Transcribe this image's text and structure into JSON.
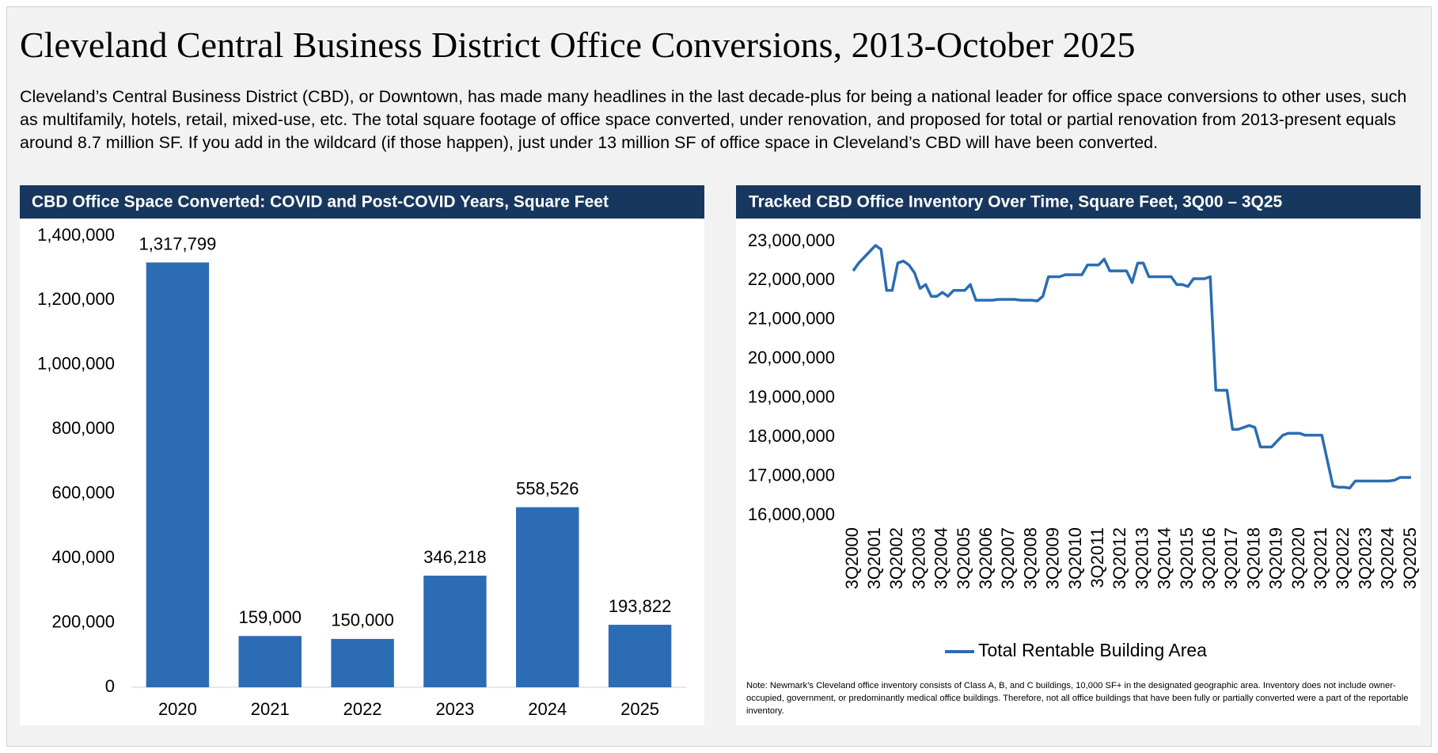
{
  "title": "Cleveland Central Business District Office Conversions, 2013-October 2025",
  "description": "Cleveland’s Central Business District (CBD), or Downtown, has made many headlines in the last decade-plus for being a national leader for office space conversions to other uses, such as multifamily, hotels, retail, mixed-use, etc. The total square footage of office space converted, under renovation, and proposed for total or partial renovation from 2013-present equals around 8.7 million SF. If you add in the wildcard (if those happen), just under 13 million SF of office space in Cleveland’s CBD will have been converted.",
  "note": "Note: Newmark’s Cleveland office inventory consists of Class A, B, and C buildings, 10,000 SF+ in the designated geographic area. Inventory does not include owner-occupied, government, or predominantly medical office buildings. Therefore, not all office buildings that have been fully or partially converted were a part of the reportable inventory.",
  "chart_data": [
    {
      "type": "bar",
      "title": "CBD Office Space Converted: COVID and Post-COVID Years, Square Feet",
      "categories": [
        "2020",
        "2021",
        "2022",
        "2023",
        "2024",
        "2025"
      ],
      "values": [
        1317799,
        159000,
        150000,
        346218,
        558526,
        193822
      ],
      "value_labels": [
        "1,317,799",
        "159,000",
        "150,000",
        "346,218",
        "558,526",
        "193,822"
      ],
      "color": "#2b6cb5",
      "grid": false,
      "ylim": [
        0,
        1400000
      ],
      "yticks": [
        0,
        {
          "value": 200000,
          "label": "200,000"
        },
        {
          "value": 400000,
          "label": "400,000"
        },
        {
          "value": 600000,
          "label": "600,000"
        },
        {
          "value": 800000,
          "label": "800,000"
        },
        {
          "value": 1000000,
          "label": "1,000,000"
        },
        {
          "value": 1200000,
          "label": "1,200,000"
        },
        {
          "value": 1400000,
          "label": "1,400,000"
        }
      ]
    },
    {
      "type": "line",
      "title": "Tracked CBD Office Inventory Over Time, Square Feet, 3Q00 – 3Q25",
      "categories": [
        "3Q2000",
        null,
        null,
        null,
        "3Q2001",
        null,
        null,
        null,
        "3Q2002",
        null,
        null,
        null,
        "3Q2003",
        null,
        null,
        null,
        "3Q2004",
        null,
        null,
        null,
        "3Q2005",
        null,
        null,
        null,
        "3Q2006",
        null,
        null,
        null,
        "3Q2007",
        null,
        null,
        null,
        "3Q2008",
        null,
        null,
        null,
        "3Q2009",
        null,
        null,
        null,
        "3Q2010",
        null,
        null,
        null,
        "3Q2011",
        null,
        null,
        null,
        "3Q2012",
        null,
        null,
        null,
        "3Q2013",
        null,
        null,
        null,
        "3Q2014",
        null,
        null,
        null,
        "3Q2015",
        null,
        null,
        null,
        "3Q2016",
        null,
        null,
        null,
        "3Q2017",
        null,
        null,
        null,
        "3Q2018",
        null,
        null,
        null,
        "3Q2019",
        null,
        null,
        null,
        "3Q2020",
        null,
        null,
        null,
        "3Q2021",
        null,
        null,
        null,
        "3Q2022",
        null,
        null,
        null,
        "3Q2023",
        null,
        null,
        null,
        "3Q2024",
        null,
        null,
        null,
        "3Q2025"
      ],
      "series": [
        {
          "name": "Total Rentable Building Area",
          "color": "#2b6cb5",
          "values": [
            22250000,
            22450000,
            22600000,
            22750000,
            22900000,
            22800000,
            21750000,
            21750000,
            22450000,
            22500000,
            22400000,
            22200000,
            21800000,
            21900000,
            21600000,
            21600000,
            21700000,
            21600000,
            21750000,
            21750000,
            21750000,
            21900000,
            21500000,
            21500000,
            21500000,
            21500000,
            21520000,
            21520000,
            21520000,
            21520000,
            21500000,
            21500000,
            21500000,
            21480000,
            21600000,
            22100000,
            22100000,
            22100000,
            22150000,
            22150000,
            22150000,
            22150000,
            22400000,
            22400000,
            22400000,
            22550000,
            22250000,
            22250000,
            22250000,
            22250000,
            21950000,
            22450000,
            22450000,
            22100000,
            22100000,
            22100000,
            22100000,
            22100000,
            21900000,
            21900000,
            21850000,
            22050000,
            22050000,
            22050000,
            22100000,
            19200000,
            19200000,
            19200000,
            18200000,
            18200000,
            18250000,
            18300000,
            18250000,
            17750000,
            17750000,
            17750000,
            17900000,
            18050000,
            18100000,
            18100000,
            18100000,
            18050000,
            18050000,
            18050000,
            18050000,
            17400000,
            16750000,
            16720000,
            16720000,
            16700000,
            16880000,
            16880000,
            16880000,
            16880000,
            16880000,
            16880000,
            16880000,
            16900000,
            16970000,
            16970000,
            16970000
          ]
        }
      ],
      "ylim": [
        16000000,
        23000000
      ],
      "yticks": [
        {
          "value": 16000000,
          "label": "16,000,000"
        },
        {
          "value": 17000000,
          "label": "17,000,000"
        },
        {
          "value": 18000000,
          "label": "18,000,000"
        },
        {
          "value": 19000000,
          "label": "19,000,000"
        },
        {
          "value": 20000000,
          "label": "20,000,000"
        },
        {
          "value": 21000000,
          "label": "21,000,000"
        },
        {
          "value": 22000000,
          "label": "22,000,000"
        },
        {
          "value": 23000000,
          "label": "23,000,000"
        }
      ],
      "legend": "bottom",
      "grid": false
    }
  ]
}
